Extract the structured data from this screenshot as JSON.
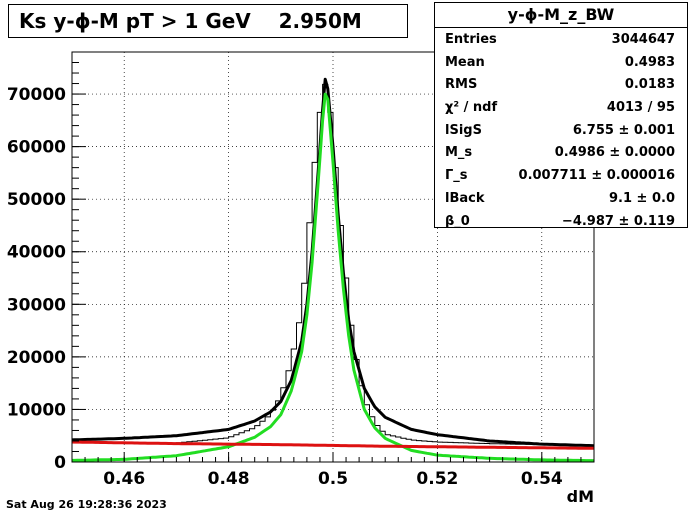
{
  "title": "Ks y-ϕ-M pT > 1 GeV    2.950M",
  "footer": "Sat Aug 26 19:28:36 2023",
  "stats": {
    "name": "y-ϕ-M_z_BW",
    "rows": [
      {
        "key": "Entries",
        "value": "3044647"
      },
      {
        "key": "Mean",
        "value": "0.4983"
      },
      {
        "key": "RMS",
        "value": "0.0183"
      },
      {
        "key": "χ² / ndf",
        "value": "4013 / 95"
      },
      {
        "key": "lSigS",
        "value": "6.755 ± 0.001"
      },
      {
        "key": "M_s",
        "value": "0.4986 ± 0.0000"
      },
      {
        "key": "Γ_s",
        "value": "0.007711 ± 0.000016"
      },
      {
        "key": "lBack",
        "value": "9.1 ± 0.0"
      },
      {
        "key": "β_0",
        "value": "−4.987 ± 0.119"
      }
    ]
  },
  "chart_data": {
    "type": "line",
    "xlabel": "dM",
    "ylabel": "",
    "xlim": [
      0.45,
      0.55
    ],
    "ylim": [
      0,
      78000
    ],
    "xticks": [
      "0.46",
      "0.48",
      "0.5",
      "0.52",
      "0.54"
    ],
    "yticks": [
      "0",
      "10000",
      "20000",
      "30000",
      "40000",
      "50000",
      "60000",
      "70000"
    ],
    "grid": true,
    "peak_x": 0.4986,
    "width_gamma": 0.0077,
    "series": [
      {
        "role": "histogram",
        "color": "#000000",
        "x": [
          0.45,
          0.46,
          0.47,
          0.48,
          0.485,
          0.488,
          0.49,
          0.492,
          0.494,
          0.495,
          0.496,
          0.497,
          0.498,
          0.4986,
          0.499,
          0.5,
          0.501,
          0.502,
          0.503,
          0.504,
          0.506,
          0.508,
          0.51,
          0.515,
          0.52,
          0.53,
          0.54,
          0.55
        ],
        "y": [
          3700,
          3700,
          3600,
          4600,
          6500,
          9000,
          12500,
          19000,
          29000,
          39000,
          52000,
          62000,
          71000,
          72000,
          71000,
          62000,
          50000,
          40000,
          30000,
          22000,
          12000,
          7500,
          5300,
          4200,
          3800,
          3500,
          3300,
          3100
        ]
      },
      {
        "role": "fit total",
        "color": "#000000",
        "x": [
          0.45,
          0.46,
          0.47,
          0.48,
          0.485,
          0.488,
          0.49,
          0.492,
          0.494,
          0.495,
          0.496,
          0.497,
          0.498,
          0.4986,
          0.499,
          0.5,
          0.501,
          0.502,
          0.503,
          0.504,
          0.506,
          0.508,
          0.51,
          0.515,
          0.52,
          0.53,
          0.54,
          0.55
        ],
        "y": [
          4200,
          4500,
          5000,
          6200,
          7800,
          9500,
          11500,
          15500,
          23000,
          30000,
          40000,
          53000,
          67000,
          74000,
          71000,
          60000,
          47000,
          36000,
          27000,
          21000,
          14000,
          10500,
          8500,
          6200,
          5200,
          4000,
          3400,
          3100
        ]
      },
      {
        "role": "fit signal",
        "color": "#22dd22",
        "x": [
          0.45,
          0.46,
          0.47,
          0.48,
          0.485,
          0.488,
          0.49,
          0.492,
          0.494,
          0.495,
          0.496,
          0.497,
          0.498,
          0.4986,
          0.499,
          0.5,
          0.501,
          0.502,
          0.503,
          0.504,
          0.506,
          0.508,
          0.51,
          0.515,
          0.52,
          0.53,
          0.54,
          0.55
        ],
        "y": [
          300,
          500,
          1200,
          2900,
          4700,
          6700,
          9000,
          13500,
          21000,
          28000,
          38000,
          51000,
          65000,
          71000,
          69000,
          57000,
          44000,
          33000,
          24000,
          17500,
          10000,
          6500,
          4500,
          2200,
          1300,
          700,
          400,
          250
        ]
      },
      {
        "role": "fit background",
        "color": "#dd1111",
        "x": [
          0.45,
          0.47,
          0.49,
          0.51,
          0.53,
          0.55
        ],
        "y": [
          3800,
          3500,
          3300,
          3000,
          2800,
          2600
        ]
      }
    ]
  }
}
